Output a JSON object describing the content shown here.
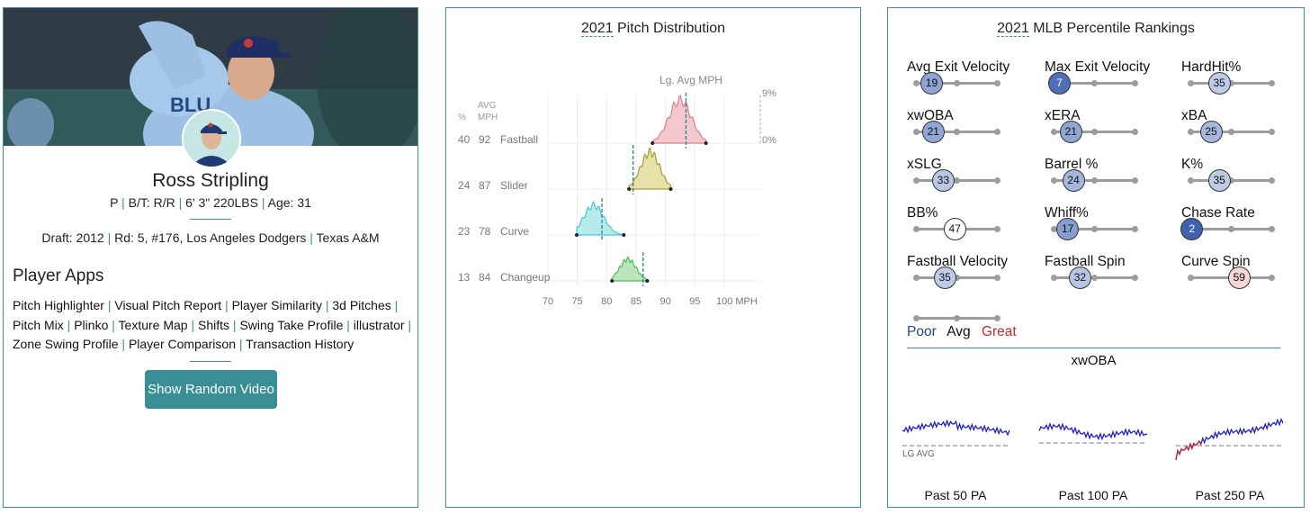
{
  "player": {
    "name": "Ross Stripling",
    "position": "P",
    "bats_throws": "B/T: R/R",
    "height_weight": "6' 3\" 220LBS",
    "age": "Age: 31",
    "draft_label": "Draft:",
    "draft_year": "2012",
    "draft_round": "Rd: 5, #176, Los Angeles Dodgers",
    "school": "Texas A&M",
    "jersey_text": "BLU"
  },
  "apps": {
    "heading": "Player Apps",
    "links": [
      "Pitch Highlighter",
      "Visual Pitch Report",
      "Player Similarity",
      "3d Pitches",
      "Pitch Mix",
      "Plinko",
      "Texture Map",
      "Shifts",
      "Swing Take Profile",
      "illustrator",
      "Zone Swing Profile",
      "Player Comparison",
      "Transaction History"
    ],
    "video_button": "Show Random Video"
  },
  "distribution": {
    "title_year": "2021",
    "title_rest": "Pitch Distribution",
    "lg_avg_label": "Lg. Avg MPH",
    "scale_top": "9%",
    "scale_bottom": "0%",
    "col_pct": "%",
    "col_avg": "AVG",
    "col_mph": "MPH",
    "x_unit": "MPH",
    "x_ticks": [
      70,
      75,
      80,
      85,
      90,
      95,
      100
    ],
    "pitches": [
      {
        "name": "Fastball",
        "pct": "40",
        "mph": "92",
        "lg_avg": 93.5,
        "center": 92.5,
        "spread": 1.9,
        "min": 87.8,
        "max": 96.9,
        "color": "#d97a87",
        "fill": "#f3c7cd"
      },
      {
        "name": "Slider",
        "pct": "24",
        "mph": "87",
        "lg_avg": 84.5,
        "center": 87.4,
        "spread": 1.6,
        "min": 83.8,
        "max": 90.9,
        "color": "#a49827",
        "fill": "#e6e1a6"
      },
      {
        "name": "Curve",
        "pct": "23",
        "mph": "78",
        "lg_avg": 79.2,
        "center": 77.8,
        "spread": 1.7,
        "min": 74.9,
        "max": 82.9,
        "color": "#3fc6cf",
        "fill": "#b4e9ec"
      },
      {
        "name": "Changeup",
        "pct": "13",
        "mph": "84",
        "lg_avg": 86.2,
        "center": 83.6,
        "spread": 1.4,
        "min": 80.9,
        "max": 86.9,
        "color": "#49b84f",
        "fill": "#b8e4ba"
      }
    ]
  },
  "percentiles": {
    "title_year": "2021",
    "title_rest": "MLB Percentile Rankings",
    "metrics": [
      {
        "label": "Avg Exit Velocity",
        "value": "19",
        "color": "#8ea4d2"
      },
      {
        "label": "Max Exit Velocity",
        "value": "7",
        "color": "#4f70b8"
      },
      {
        "label": "HardHit%",
        "value": "35",
        "color": "#bccbe6"
      },
      {
        "label": "xwOBA",
        "value": "21",
        "color": "#90a7d3"
      },
      {
        "label": "xERA",
        "value": "21",
        "color": "#90a7d3"
      },
      {
        "label": "xBA",
        "value": "25",
        "color": "#a6b8dc"
      },
      {
        "label": "xSLG",
        "value": "33",
        "color": "#b7c7e4"
      },
      {
        "label": "Barrel %",
        "value": "24",
        "color": "#a3b6db"
      },
      {
        "label": "K%",
        "value": "35",
        "color": "#bccbe6"
      },
      {
        "label": "BB%",
        "value": "47",
        "color": "#ffffff"
      },
      {
        "label": "Whiff%",
        "value": "17",
        "color": "#869dd0"
      },
      {
        "label": "Chase Rate",
        "value": "2",
        "color": "#3f62ad"
      },
      {
        "label": "Fastball Velocity",
        "value": "35",
        "color": "#bccbe6"
      },
      {
        "label": "Fastball Spin",
        "value": "32",
        "color": "#b5c5e3"
      },
      {
        "label": "Curve Spin",
        "value": "59",
        "color": "#f4d6d4"
      }
    ],
    "legend": {
      "poor": "Poor",
      "avg": "Avg",
      "great": "Great"
    }
  },
  "xwoba": {
    "title": "xwOBA",
    "lg_avg_label": "LG AVG",
    "captions": [
      "Past 50 PA",
      "Past 100 PA",
      "Past 250 PA"
    ]
  }
}
